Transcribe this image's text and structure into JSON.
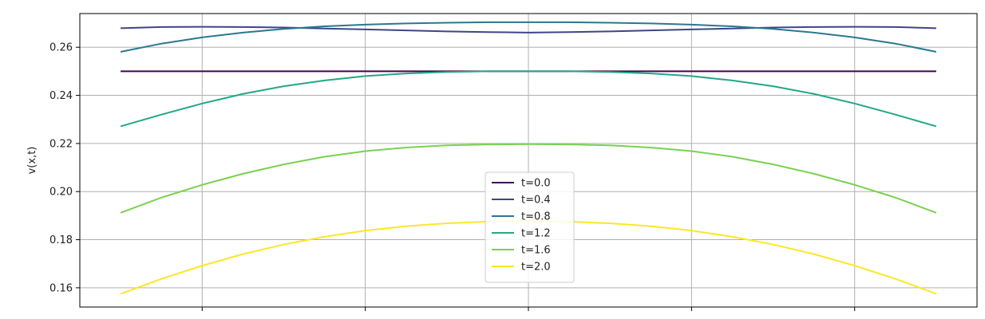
{
  "chart_data": {
    "type": "line",
    "title": "",
    "xlabel": "",
    "ylabel": "v(x,t)",
    "grid": true,
    "legend_placement": "lower-center",
    "x": [
      0,
      0.05,
      0.1,
      0.15,
      0.2,
      0.25,
      0.3,
      0.35,
      0.4,
      0.45,
      0.5,
      0.55,
      0.6,
      0.65,
      0.7,
      0.75,
      0.8,
      0.85,
      0.9,
      0.95,
      1
    ],
    "xlim": [
      -0.05,
      1.05
    ],
    "xticks": [
      0.1,
      0.3,
      0.5,
      0.7,
      0.9
    ],
    "ylim": [
      0.152,
      0.274
    ],
    "yticks": [
      {
        "value": 0.16,
        "label": "0.16"
      },
      {
        "value": 0.18,
        "label": "0.18"
      },
      {
        "value": 0.2,
        "label": "0.20"
      },
      {
        "value": 0.22,
        "label": "0.22"
      },
      {
        "value": 0.24,
        "label": "0.24"
      },
      {
        "value": 0.26,
        "label": "0.26"
      }
    ],
    "series": [
      {
        "name": "t=0.0",
        "color": "#440154",
        "values": [
          0.25,
          0.25,
          0.25,
          0.25,
          0.25,
          0.25,
          0.25,
          0.25,
          0.25,
          0.25,
          0.25,
          0.25,
          0.25,
          0.25,
          0.25,
          0.25,
          0.25,
          0.25,
          0.25,
          0.25,
          0.25
        ]
      },
      {
        "name": "t=0.4",
        "color": "#414487",
        "values": [
          0.2679,
          0.2684,
          0.2685,
          0.2684,
          0.2682,
          0.2678,
          0.2674,
          0.267,
          0.2666,
          0.2663,
          0.2661,
          0.2663,
          0.2666,
          0.267,
          0.2674,
          0.2678,
          0.2682,
          0.2684,
          0.2685,
          0.2684,
          0.2679
        ]
      },
      {
        "name": "t=0.8",
        "color": "#2a788e",
        "values": [
          0.2581,
          0.2615,
          0.2641,
          0.2661,
          0.2676,
          0.2687,
          0.2694,
          0.2699,
          0.2702,
          0.2704,
          0.2704,
          0.2704,
          0.2702,
          0.2699,
          0.2694,
          0.2687,
          0.2676,
          0.2661,
          0.2641,
          0.2615,
          0.2581
        ]
      },
      {
        "name": "t=1.2",
        "color": "#22a884",
        "values": [
          0.2271,
          0.232,
          0.2366,
          0.2406,
          0.2438,
          0.2462,
          0.248,
          0.2491,
          0.2497,
          0.25,
          0.25,
          0.25,
          0.2497,
          0.2491,
          0.248,
          0.2462,
          0.2438,
          0.2406,
          0.2366,
          0.232,
          0.2271
        ]
      },
      {
        "name": "t=1.6",
        "color": "#7ad151",
        "values": [
          0.1912,
          0.1975,
          0.2028,
          0.2074,
          0.2113,
          0.2145,
          0.2168,
          0.2183,
          0.2192,
          0.2196,
          0.2197,
          0.2196,
          0.2192,
          0.2183,
          0.2168,
          0.2145,
          0.2113,
          0.2074,
          0.2028,
          0.1975,
          0.1912
        ]
      },
      {
        "name": "t=2.0",
        "color": "#fde725",
        "values": [
          0.1575,
          0.1637,
          0.1692,
          0.174,
          0.178,
          0.1812,
          0.1838,
          0.1856,
          0.1868,
          0.1875,
          0.1878,
          0.1875,
          0.1868,
          0.1856,
          0.1838,
          0.1812,
          0.178,
          0.174,
          0.1692,
          0.1637,
          0.1575
        ]
      }
    ]
  }
}
